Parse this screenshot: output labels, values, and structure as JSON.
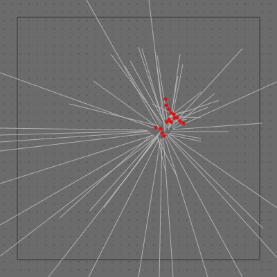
{
  "view": {
    "background_color": "#6b6b6b",
    "dot_grid_color": "#565656",
    "frame_color": "#4f4f4f",
    "ray_color": "#bdbdbd",
    "point_color": "#e01010"
  },
  "scene": {
    "point_count": 16,
    "ray_count": 52
  }
}
